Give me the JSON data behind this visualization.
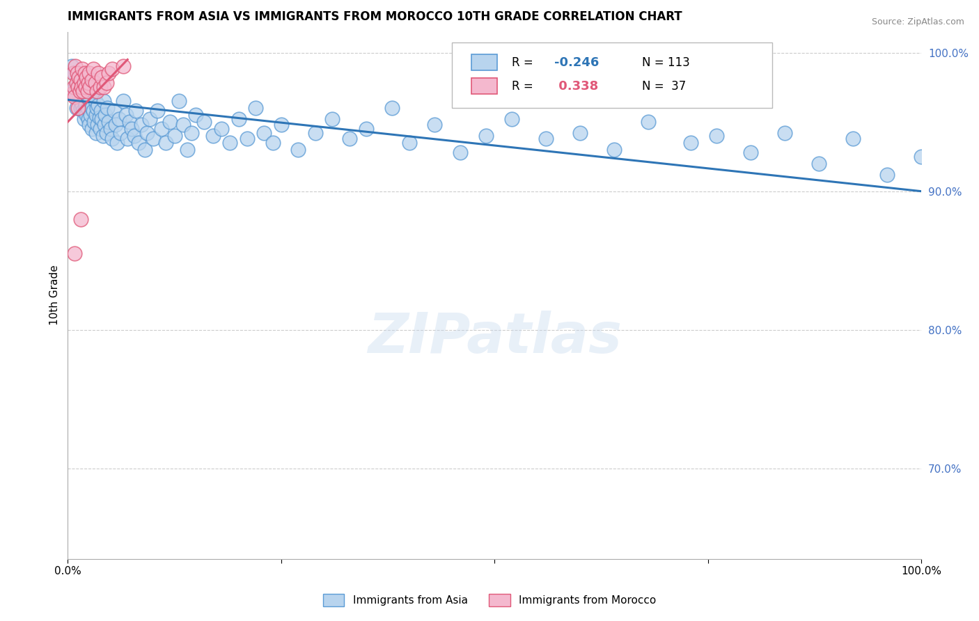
{
  "title": "IMMIGRANTS FROM ASIA VS IMMIGRANTS FROM MOROCCO 10TH GRADE CORRELATION CHART",
  "source": "Source: ZipAtlas.com",
  "ylabel": "10th Grade",
  "xlim": [
    0.0,
    1.0
  ],
  "ylim": [
    0.635,
    1.015
  ],
  "yticks": [
    0.7,
    0.8,
    0.9,
    1.0
  ],
  "ytick_labels": [
    "70.0%",
    "80.0%",
    "90.0%",
    "100.0%"
  ],
  "legend_R_asia": "-0.246",
  "legend_N_asia": "113",
  "legend_R_morocco": "0.338",
  "legend_N_morocco": "37",
  "asia_color": "#b8d4ee",
  "asia_edge_color": "#5b9bd5",
  "morocco_color": "#f4b8ce",
  "morocco_edge_color": "#e05878",
  "asia_line_color": "#2e75b6",
  "morocco_line_color": "#e05878",
  "watermark": "ZIPatlas",
  "background_color": "#ffffff",
  "grid_color": "#cccccc",
  "right_tick_color": "#4472c4",
  "asia_x": [
    0.005,
    0.007,
    0.008,
    0.009,
    0.01,
    0.01,
    0.011,
    0.012,
    0.013,
    0.014,
    0.015,
    0.015,
    0.016,
    0.017,
    0.018,
    0.018,
    0.019,
    0.02,
    0.02,
    0.021,
    0.022,
    0.022,
    0.023,
    0.024,
    0.025,
    0.025,
    0.026,
    0.027,
    0.028,
    0.028,
    0.029,
    0.03,
    0.031,
    0.032,
    0.033,
    0.033,
    0.034,
    0.035,
    0.036,
    0.037,
    0.038,
    0.039,
    0.04,
    0.041,
    0.042,
    0.043,
    0.044,
    0.045,
    0.046,
    0.048,
    0.05,
    0.052,
    0.054,
    0.056,
    0.058,
    0.06,
    0.062,
    0.065,
    0.068,
    0.07,
    0.072,
    0.075,
    0.078,
    0.08,
    0.083,
    0.086,
    0.09,
    0.093,
    0.096,
    0.1,
    0.105,
    0.11,
    0.115,
    0.12,
    0.125,
    0.13,
    0.135,
    0.14,
    0.145,
    0.15,
    0.16,
    0.17,
    0.18,
    0.19,
    0.2,
    0.21,
    0.22,
    0.23,
    0.24,
    0.25,
    0.27,
    0.29,
    0.31,
    0.33,
    0.35,
    0.38,
    0.4,
    0.43,
    0.46,
    0.49,
    0.52,
    0.56,
    0.6,
    0.64,
    0.68,
    0.73,
    0.76,
    0.8,
    0.84,
    0.88,
    0.92,
    0.96,
    1.0
  ],
  "asia_y": [
    0.99,
    0.97,
    0.985,
    0.975,
    0.968,
    0.96,
    0.975,
    0.98,
    0.97,
    0.965,
    0.972,
    0.96,
    0.968,
    0.962,
    0.958,
    0.975,
    0.952,
    0.965,
    0.958,
    0.962,
    0.955,
    0.97,
    0.96,
    0.952,
    0.968,
    0.948,
    0.965,
    0.955,
    0.96,
    0.945,
    0.972,
    0.958,
    0.95,
    0.965,
    0.955,
    0.942,
    0.96,
    0.948,
    0.962,
    0.953,
    0.945,
    0.958,
    0.952,
    0.94,
    0.965,
    0.948,
    0.955,
    0.942,
    0.96,
    0.95,
    0.945,
    0.938,
    0.958,
    0.948,
    0.935,
    0.952,
    0.942,
    0.965,
    0.955,
    0.938,
    0.95,
    0.945,
    0.94,
    0.958,
    0.935,
    0.948,
    0.93,
    0.942,
    0.952,
    0.938,
    0.958,
    0.945,
    0.935,
    0.95,
    0.94,
    0.965,
    0.948,
    0.93,
    0.942,
    0.955,
    0.95,
    0.94,
    0.945,
    0.935,
    0.952,
    0.938,
    0.96,
    0.942,
    0.935,
    0.948,
    0.93,
    0.942,
    0.952,
    0.938,
    0.945,
    0.96,
    0.935,
    0.948,
    0.928,
    0.94,
    0.952,
    0.938,
    0.942,
    0.93,
    0.95,
    0.935,
    0.94,
    0.928,
    0.942,
    0.92,
    0.938,
    0.912,
    0.925
  ],
  "morocco_x": [
    0.005,
    0.006,
    0.007,
    0.008,
    0.009,
    0.01,
    0.011,
    0.012,
    0.013,
    0.014,
    0.015,
    0.016,
    0.017,
    0.018,
    0.019,
    0.02,
    0.021,
    0.022,
    0.023,
    0.024,
    0.008,
    0.025,
    0.026,
    0.028,
    0.03,
    0.032,
    0.034,
    0.036,
    0.038,
    0.04,
    0.042,
    0.045,
    0.048,
    0.052,
    0.015,
    0.065,
    0.012
  ],
  "morocco_y": [
    0.97,
    0.985,
    0.975,
    0.968,
    0.99,
    0.978,
    0.985,
    0.975,
    0.982,
    0.972,
    0.98,
    0.975,
    0.988,
    0.972,
    0.978,
    0.985,
    0.975,
    0.982,
    0.972,
    0.978,
    0.855,
    0.985,
    0.975,
    0.98,
    0.988,
    0.978,
    0.972,
    0.985,
    0.975,
    0.982,
    0.975,
    0.978,
    0.985,
    0.988,
    0.88,
    0.99,
    0.96
  ],
  "asia_trend_x": [
    0.0,
    1.0
  ],
  "asia_trend_y": [
    0.966,
    0.9
  ],
  "morocco_trend_x": [
    0.0,
    0.07
  ],
  "morocco_trend_y": [
    0.95,
    0.995
  ]
}
